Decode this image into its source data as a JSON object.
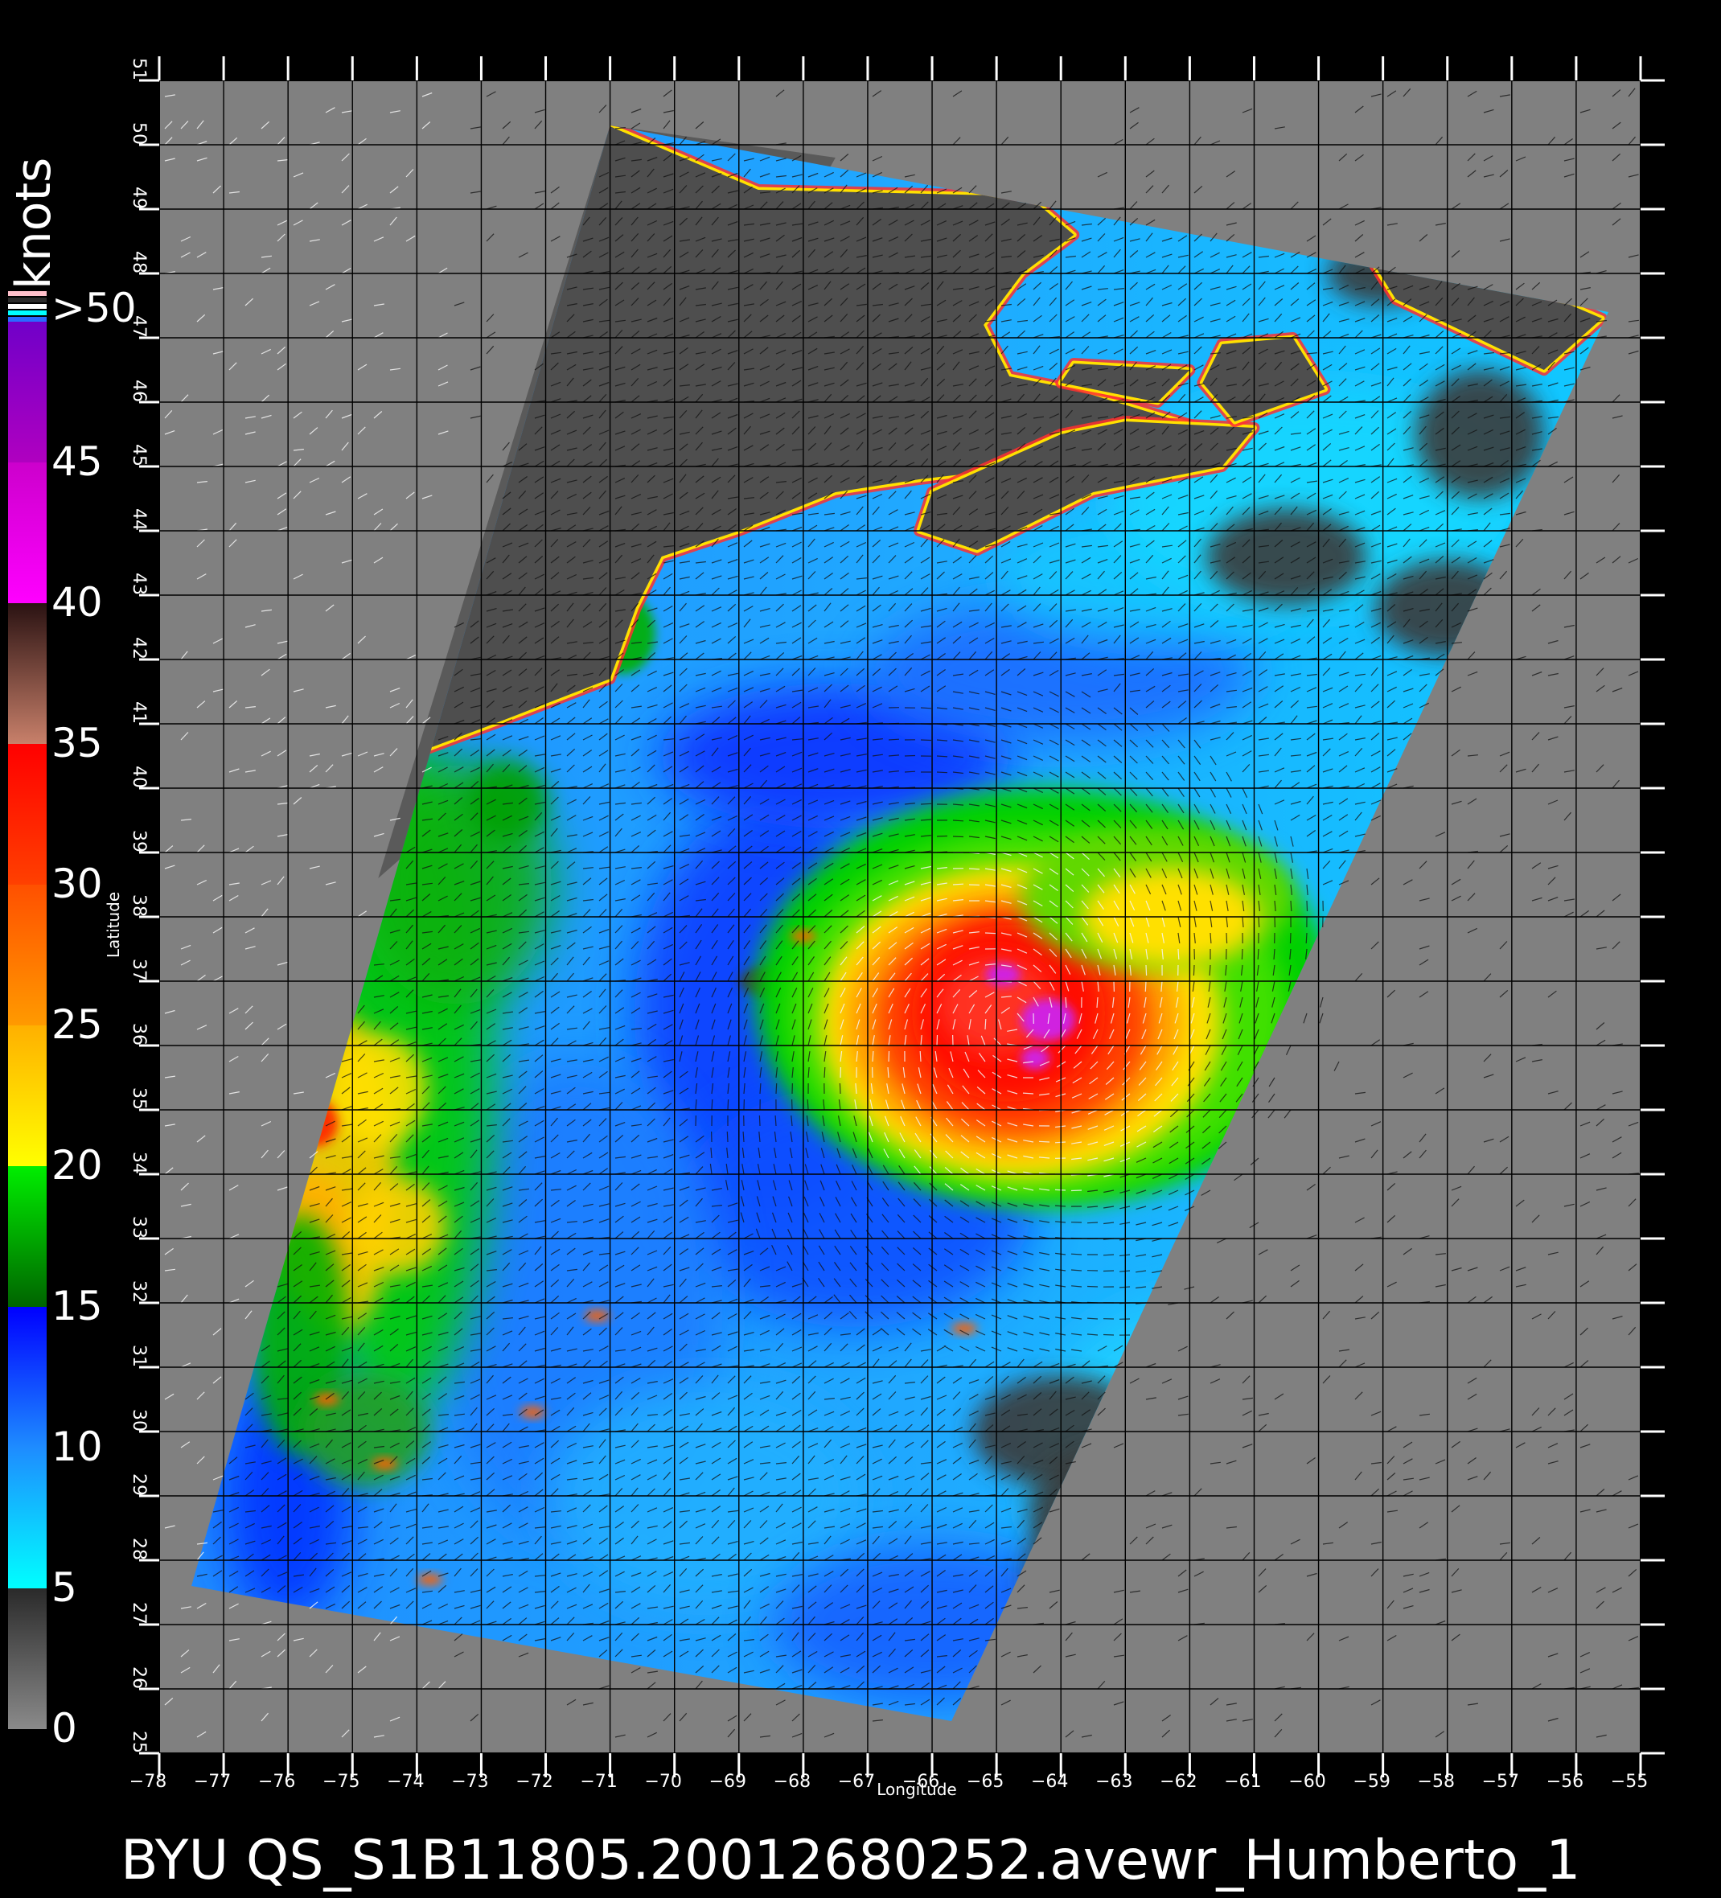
{
  "title": "BYU  QS_S1B11805.20012680252.avewr_Humberto_1",
  "colorbar": {
    "unit": "knots",
    "labels": [
      "0",
      "5",
      "10",
      "15",
      "20",
      "25",
      "30",
      "35",
      "40",
      "45",
      ">50"
    ],
    "bands": [
      {
        "from": 0,
        "to": 5,
        "colors": [
          "#8a8a8a",
          "#2a2a2a"
        ]
      },
      {
        "from": 5,
        "to": 10,
        "colors": [
          "#00ffff",
          "#1e8cff"
        ]
      },
      {
        "from": 10,
        "to": 15,
        "colors": [
          "#1e8cff",
          "#0000ff"
        ]
      },
      {
        "from": 15,
        "to": 20,
        "colors": [
          "#006400",
          "#00ee00"
        ]
      },
      {
        "from": 20,
        "to": 25,
        "colors": [
          "#ffff00",
          "#ffb000"
        ]
      },
      {
        "from": 25,
        "to": 30,
        "colors": [
          "#ff9a00",
          "#ff5000"
        ]
      },
      {
        "from": 30,
        "to": 35,
        "colors": [
          "#ff4000",
          "#ff0000"
        ]
      },
      {
        "from": 35,
        "to": 40,
        "colors": [
          "#c8806a",
          "#2a1212"
        ]
      },
      {
        "from": 40,
        "to": 45,
        "colors": [
          "#ff00ff",
          "#cc00cc"
        ]
      },
      {
        "from": 45,
        "to": 50,
        "colors": [
          "#b000c0",
          "#7000c8"
        ]
      }
    ],
    "over_swatches": [
      "#ffc0cb",
      "#2a2a2a",
      "#ffffff",
      "#00ffff",
      "#2a6aff"
    ]
  },
  "axes": {
    "xlabel": "Longitude",
    "ylabel": "Latitude",
    "lon_range": [
      -78,
      -55
    ],
    "lat_range": [
      25,
      51
    ],
    "lon_ticks": [
      -78,
      -77,
      -76,
      -75,
      -74,
      -73,
      -72,
      -71,
      -70,
      -69,
      -68,
      -67,
      -66,
      -65,
      -64,
      -63,
      -62,
      -61,
      -60,
      -59,
      -58,
      -57,
      -56,
      -55
    ],
    "lat_ticks": [
      25,
      26,
      27,
      28,
      29,
      30,
      31,
      32,
      33,
      34,
      35,
      36,
      37,
      38,
      39,
      40,
      41,
      42,
      43,
      44,
      45,
      46,
      47,
      48,
      49,
      50,
      51
    ],
    "grid": true
  },
  "map": {
    "background": "#808080",
    "land_color": "#4a4a4a",
    "swath_corners": [
      [
        -71,
        50.3
      ],
      [
        -55.5,
        47.4
      ],
      [
        -65.7,
        25.5
      ],
      [
        -77.5,
        27.6
      ]
    ],
    "storm_center": [
      -64.5,
      36.5
    ]
  }
}
